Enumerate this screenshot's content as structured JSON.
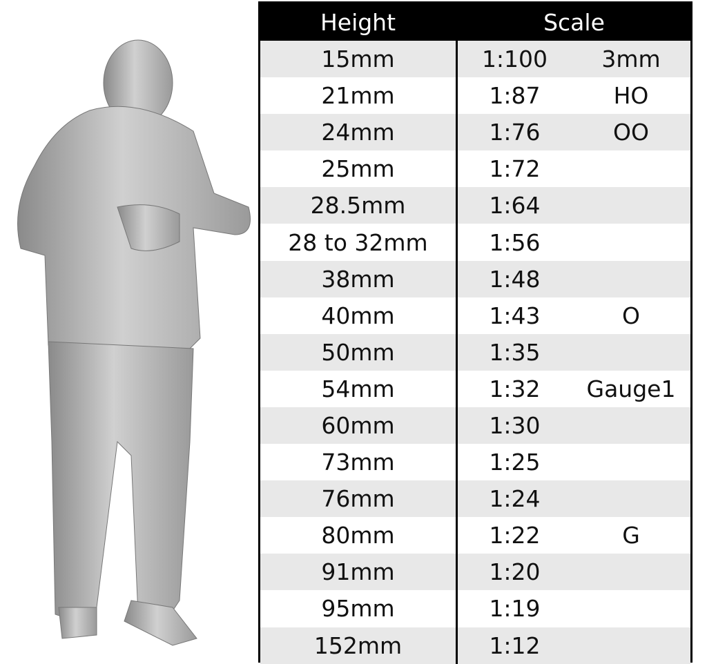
{
  "header": {
    "height": "Height",
    "scale": "Scale"
  },
  "rows": [
    {
      "height": "15mm",
      "ratio": "1:100",
      "gauge": "3mm"
    },
    {
      "height": "21mm",
      "ratio": "1:87",
      "gauge": "HO"
    },
    {
      "height": "24mm",
      "ratio": "1:76",
      "gauge": "OO"
    },
    {
      "height": "25mm",
      "ratio": "1:72",
      "gauge": ""
    },
    {
      "height": "28.5mm",
      "ratio": "1:64",
      "gauge": ""
    },
    {
      "height": "28 to 32mm",
      "ratio": "1:56",
      "gauge": ""
    },
    {
      "height": "38mm",
      "ratio": "1:48",
      "gauge": ""
    },
    {
      "height": "40mm",
      "ratio": "1:43",
      "gauge": "O"
    },
    {
      "height": "50mm",
      "ratio": "1:35",
      "gauge": ""
    },
    {
      "height": "54mm",
      "ratio": "1:32",
      "gauge": "Gauge1"
    },
    {
      "height": "60mm",
      "ratio": "1:30",
      "gauge": ""
    },
    {
      "height": "73mm",
      "ratio": "1:25",
      "gauge": ""
    },
    {
      "height": "76mm",
      "ratio": "1:24",
      "gauge": ""
    },
    {
      "height": "80mm",
      "ratio": "1:22",
      "gauge": "G"
    },
    {
      "height": "91mm",
      "ratio": "1:20",
      "gauge": ""
    },
    {
      "height": "95mm",
      "ratio": "1:19",
      "gauge": ""
    },
    {
      "height": "152mm",
      "ratio": "1:12",
      "gauge": ""
    }
  ],
  "colors": {
    "header_bg": "#000000",
    "stripe": "#e8e8e8",
    "figure": "#b8b8b8"
  }
}
